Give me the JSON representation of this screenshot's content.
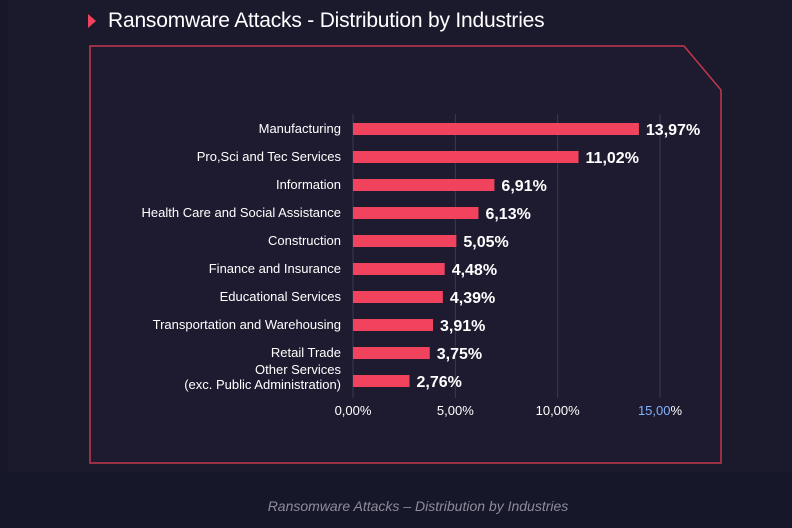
{
  "header": {
    "title": "Ransomware Attacks - Distribution by Industries"
  },
  "caption": "Ransomware Attacks – Distribution by Industries",
  "colors": {
    "bar": "#f2435e",
    "frame": "#c2374f",
    "grid": "#3b3a52",
    "highlight_tick": "#7fb2ff"
  },
  "chart_data": {
    "type": "bar",
    "orientation": "horizontal",
    "categories": [
      "Manufacturing",
      "Pro,Sci and Tec Services",
      "Information",
      "Health Care and Social Assistance",
      "Construction",
      "Finance and Insurance",
      "Educational Services",
      "Transportation and Warehousing",
      "Retail Trade",
      [
        "Other Services",
        "(exc. Public Administration)"
      ]
    ],
    "values": [
      13.97,
      11.02,
      6.91,
      6.13,
      5.05,
      4.48,
      4.39,
      3.91,
      3.75,
      2.76
    ],
    "value_labels": [
      "13,97%",
      "11,02%",
      "6,91%",
      "6,13%",
      "5,05%",
      "4,48%",
      "4,39%",
      "3,91%",
      "3,75%",
      "2,76%"
    ],
    "xlim": [
      0,
      15
    ],
    "xticks": [
      0,
      5,
      10,
      15
    ],
    "xtick_labels": [
      "0,00%",
      "5,00%",
      "10,00%",
      "15,00%"
    ],
    "grid": true
  }
}
